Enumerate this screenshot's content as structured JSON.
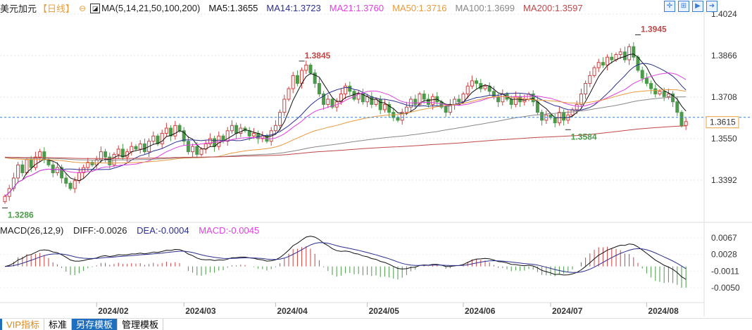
{
  "header": {
    "title": "美元加元",
    "period": "【日线】",
    "ma_params": "MA(5,14,21,50,100,200)",
    "ma": [
      {
        "label": "MA5:1.3655",
        "color": "#111111"
      },
      {
        "label": "MA14:1.3723",
        "color": "#2b2f8f"
      },
      {
        "label": "MA21:1.3760",
        "color": "#e040e0"
      },
      {
        "label": "MA50:1.3716",
        "color": "#e89a40"
      },
      {
        "label": "MA100:1.3699",
        "color": "#888888"
      },
      {
        "label": "MA200:1.3597",
        "color": "#c04848"
      }
    ]
  },
  "toolbar": {
    "icons": [
      "crosshair-icon",
      "zoom-range-icon",
      "zoom-select-icon",
      "exit-icon"
    ]
  },
  "price_axis": {
    "ticks": [
      "1.4024",
      "1.3866",
      "1.3708",
      "1.3550",
      "1.3392"
    ],
    "tick_values": [
      1.4024,
      1.3866,
      1.3708,
      1.355,
      1.3392
    ],
    "current": "1.3615",
    "current_value": 1.3615
  },
  "annotations": [
    {
      "text": "1.3845",
      "value": 1.3845,
      "index": 68,
      "color": "#c04848",
      "kind": "high"
    },
    {
      "text": "1.3945",
      "value": 1.3945,
      "index": 145,
      "color": "#c04848",
      "kind": "high"
    },
    {
      "text": "1.3584",
      "value": 1.3584,
      "index": 129,
      "color": "#4a9a4a",
      "kind": "low"
    },
    {
      "text": "1.3286",
      "value": 1.3286,
      "index": 0,
      "color": "#4a9a4a",
      "kind": "low"
    }
  ],
  "macd": {
    "params": "MACD(26,12,9)",
    "diff": "DIFF:-0.0026",
    "dea": "DEA:-0.0004",
    "macd": "MACD:-0.0045",
    "ticks": [
      "0.0067",
      "0.0028",
      "-0.0011",
      "-0.0050"
    ],
    "tick_values": [
      0.0067,
      0.0028,
      -0.0011,
      -0.005
    ]
  },
  "dates": [
    {
      "label": "2024/02",
      "index": 21
    },
    {
      "label": "2024/03",
      "index": 41
    },
    {
      "label": "2024/04",
      "index": 62
    },
    {
      "label": "2024/05",
      "index": 83
    },
    {
      "label": "2024/06",
      "index": 105
    },
    {
      "label": "2024/07",
      "index": 125
    },
    {
      "label": "2024/08",
      "index": 147
    }
  ],
  "tabs": [
    "VIP指标",
    "标准",
    "另存模板",
    "管理模板"
  ],
  "colors": {
    "up": "#d04040",
    "down": "#4a9a4a"
  },
  "chart_data": {
    "type": "candlestick",
    "closes": [
      1.333,
      1.336,
      1.34,
      1.345,
      1.342,
      1.347,
      1.344,
      1.348,
      1.35,
      1.347,
      1.345,
      1.342,
      1.344,
      1.34,
      1.338,
      1.336,
      1.339,
      1.342,
      1.344,
      1.346,
      1.345,
      1.347,
      1.35,
      1.348,
      1.345,
      1.349,
      1.351,
      1.348,
      1.35,
      1.352,
      1.351,
      1.353,
      1.35,
      1.354,
      1.356,
      1.353,
      1.357,
      1.359,
      1.356,
      1.36,
      1.358,
      1.354,
      1.35,
      1.352,
      1.349,
      1.351,
      1.353,
      1.355,
      1.352,
      1.356,
      1.354,
      1.358,
      1.36,
      1.357,
      1.359,
      1.358,
      1.356,
      1.357,
      1.355,
      1.356,
      1.354,
      1.358,
      1.36,
      1.365,
      1.37,
      1.374,
      1.379,
      1.376,
      1.381,
      1.383,
      1.38,
      1.376,
      1.372,
      1.368,
      1.37,
      1.367,
      1.369,
      1.372,
      1.375,
      1.373,
      1.37,
      1.372,
      1.369,
      1.371,
      1.368,
      1.37,
      1.366,
      1.368,
      1.365,
      1.363,
      1.362,
      1.365,
      1.367,
      1.37,
      1.368,
      1.372,
      1.37,
      1.368,
      1.371,
      1.369,
      1.367,
      1.365,
      1.368,
      1.37,
      1.369,
      1.372,
      1.375,
      1.377,
      1.376,
      1.374,
      1.375,
      1.373,
      1.371,
      1.369,
      1.372,
      1.37,
      1.368,
      1.371,
      1.369,
      1.37,
      1.372,
      1.369,
      1.365,
      1.362,
      1.364,
      1.363,
      1.361,
      1.365,
      1.362,
      1.364,
      1.366,
      1.368,
      1.372,
      1.376,
      1.379,
      1.382,
      1.384,
      1.383,
      1.386,
      1.385,
      1.387,
      1.388,
      1.385,
      1.39,
      1.386,
      1.381,
      1.378,
      1.376,
      1.374,
      1.372,
      1.373,
      1.371,
      1.372,
      1.369,
      1.365,
      1.36,
      1.3615
    ],
    "price_range": [
      1.326,
      1.4024
    ],
    "macd_range": [
      -0.0065,
      0.0067
    ]
  }
}
